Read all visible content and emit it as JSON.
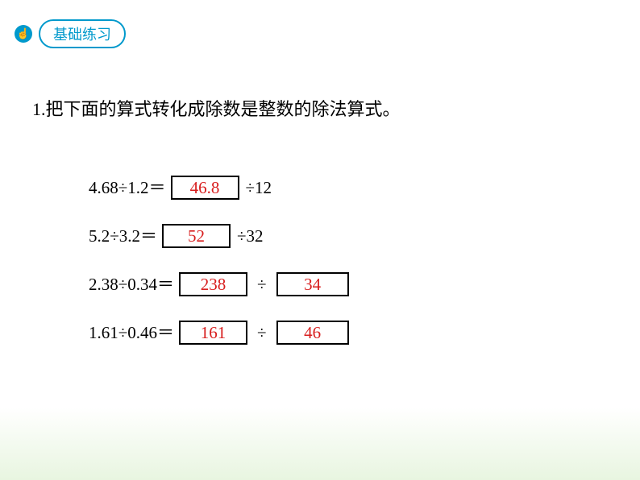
{
  "header": {
    "icon_glyph": "⊙",
    "label": "基础练习"
  },
  "instruction": "1.把下面的算式转化成除数是整数的除法算式。",
  "equations": [
    {
      "left": "4.68÷1.2＝",
      "answer1": "46.8",
      "mid": "÷12"
    },
    {
      "left": "5.2÷3.2＝",
      "answer1": "52",
      "mid": "÷32"
    },
    {
      "left": "2.38÷0.34＝",
      "answer1": "238",
      "op": "÷",
      "answer2": "34"
    },
    {
      "left": "1.61÷0.46＝",
      "answer1": "161",
      "op": "÷",
      "answer2": "46"
    }
  ],
  "colors": {
    "accent": "#0099cc",
    "answer": "#d81e1e",
    "text": "#000000",
    "gradient_bottom": "#e8f5e0"
  },
  "typography": {
    "header_fontsize": 18,
    "instruction_fontsize": 22,
    "equation_fontsize": 21,
    "answer_fontsize": 21
  }
}
